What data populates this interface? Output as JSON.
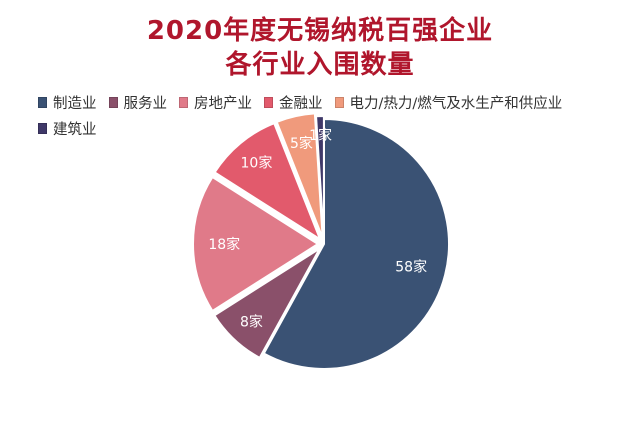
{
  "chart_data": {
    "type": "pie",
    "title": "2020年度无锡纳税百强企业",
    "subtitle": "各行业入围数量",
    "unit": "家",
    "categories": [
      "制造业",
      "服务业",
      "房地产业",
      "金融业",
      "电力/热力/燃气及水生产和供应业",
      "建筑业"
    ],
    "values": [
      58,
      8,
      18,
      10,
      5,
      1
    ],
    "labels": [
      "58家",
      "8家",
      "18家",
      "10家",
      "5家",
      "1家"
    ],
    "colors": [
      "#3a5274",
      "#8a506a",
      "#e07a89",
      "#e25a6c",
      "#f09a7c",
      "#3f3868"
    ],
    "legend_position": "top-left",
    "start_angle_deg": 0,
    "direction": "clockwise"
  }
}
